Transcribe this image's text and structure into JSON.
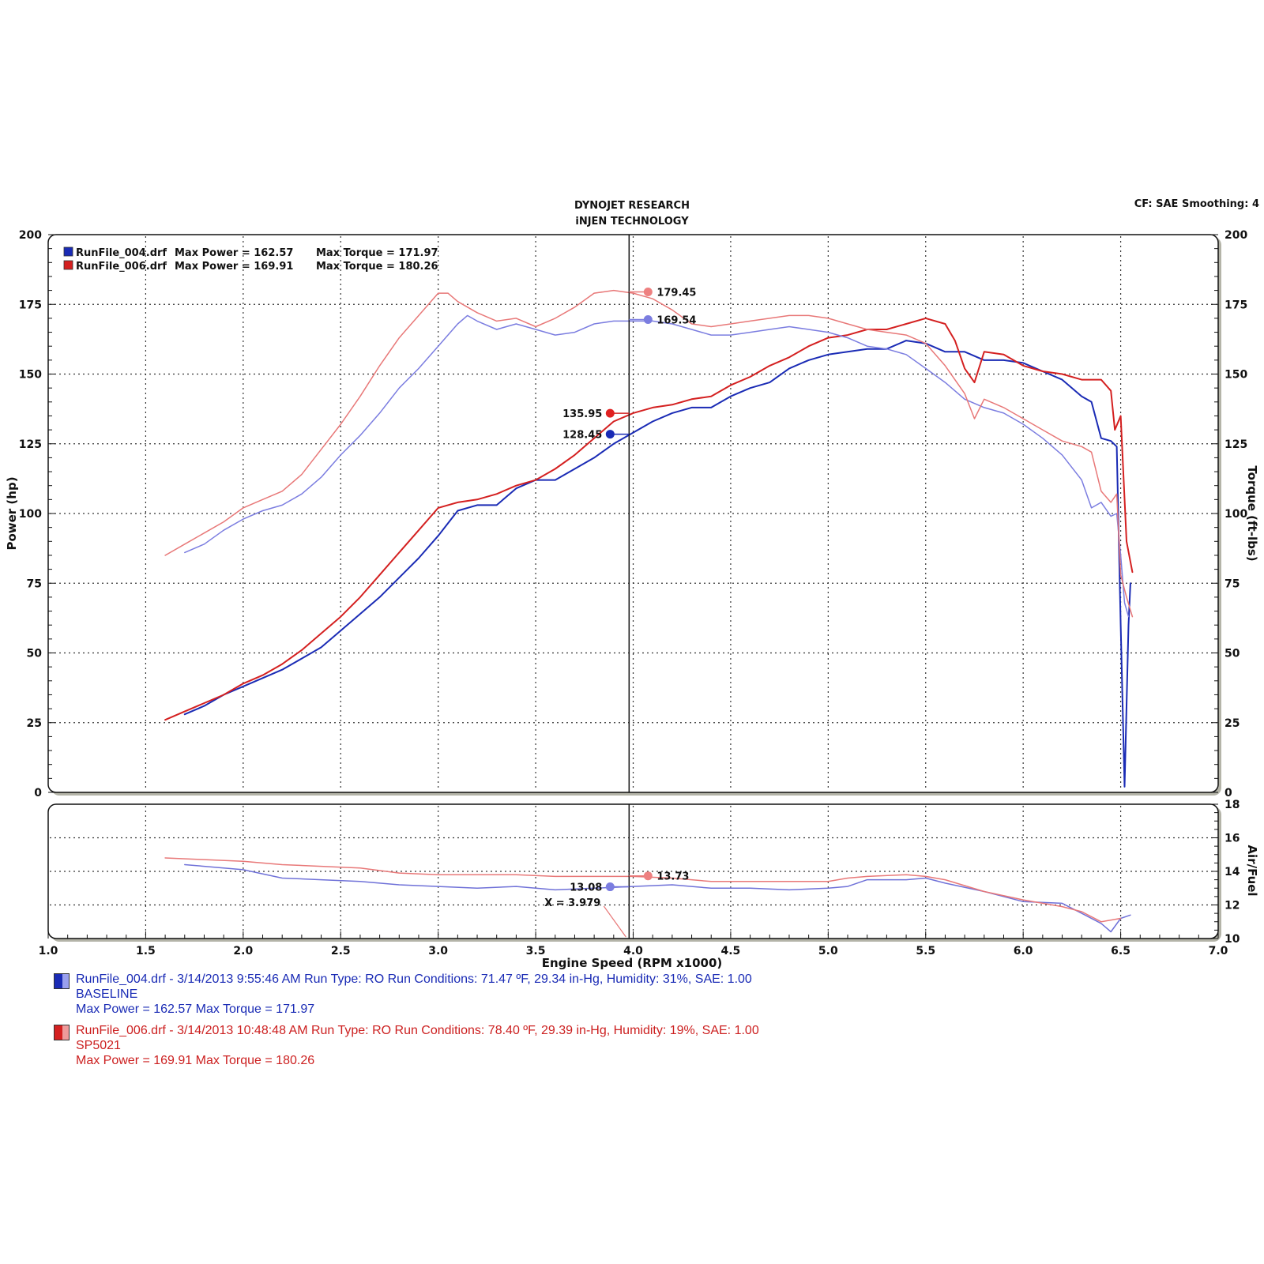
{
  "header": {
    "title_line1": "DYNOJET RESEARCH",
    "title_line2": "iNJEN TECHNOLOGY",
    "settings": "CF: SAE  Smoothing: 4"
  },
  "plot_legend": [
    {
      "file": "RunFile_004.drf",
      "power_text": "Max Power = 162.57",
      "torque_text": "Max Torque = 171.97",
      "color": "#1a2bb5"
    },
    {
      "file": "RunFile_006.drf",
      "power_text": "Max Power = 169.91",
      "torque_text": "Max Torque = 180.26",
      "color": "#d42020"
    }
  ],
  "cursor": {
    "label": "X = 3.979",
    "x": 3.979,
    "readouts": [
      {
        "value": "179.45",
        "y": 179.45,
        "series": "run006_torque",
        "side": "right"
      },
      {
        "value": "169.54",
        "y": 169.54,
        "series": "run004_torque",
        "side": "right"
      },
      {
        "value": "135.95",
        "y": 135.95,
        "series": "run006_power",
        "side": "left"
      },
      {
        "value": "128.45",
        "y": 128.45,
        "series": "run004_power",
        "side": "left"
      },
      {
        "value": "13.73",
        "y": 13.73,
        "series": "run006_afr",
        "side": "right"
      },
      {
        "value": "13.08",
        "y": 13.08,
        "series": "run004_afr",
        "side": "left"
      }
    ]
  },
  "chart_data": {
    "type": "line",
    "xlabel": "Engine Speed (RPM x1000)",
    "ylabel_left": "Power (hp)",
    "ylabel_right": "Torque (ft-lbs)",
    "ylabel_afr": "Air/Fuel",
    "xlim": [
      1.0,
      7.0
    ],
    "x_ticks": [
      "1.0",
      "1.5",
      "2.0",
      "2.5",
      "3.0",
      "3.5",
      "4.0",
      "4.5",
      "5.0",
      "5.5",
      "6.0",
      "6.5",
      "7.0"
    ],
    "ylim_main": [
      0,
      200
    ],
    "y_ticks_main": [
      "0",
      "25",
      "50",
      "75",
      "100",
      "125",
      "150",
      "175",
      "200"
    ],
    "y_ticks_torque": [
      "25",
      "50",
      "75",
      "100",
      "125",
      "150",
      "175",
      "200"
    ],
    "ylim_afr": [
      10,
      18
    ],
    "y_ticks_afr": [
      "10",
      "12",
      "14",
      "16",
      "18"
    ],
    "grid": true,
    "series": [
      {
        "key": "run004_power",
        "color": "#1a2bb5",
        "width": 2,
        "x": [
          1.7,
          1.8,
          1.9,
          2.0,
          2.1,
          2.2,
          2.3,
          2.4,
          2.5,
          2.6,
          2.7,
          2.8,
          2.9,
          3.0,
          3.1,
          3.2,
          3.3,
          3.4,
          3.5,
          3.6,
          3.7,
          3.8,
          3.9,
          4.0,
          4.1,
          4.2,
          4.3,
          4.4,
          4.5,
          4.6,
          4.7,
          4.8,
          4.9,
          5.0,
          5.1,
          5.2,
          5.3,
          5.4,
          5.5,
          5.6,
          5.7,
          5.8,
          5.9,
          6.0,
          6.1,
          6.2,
          6.3,
          6.35,
          6.4,
          6.45,
          6.48,
          6.5,
          6.52,
          6.54,
          6.55
        ],
        "y": [
          28,
          31,
          35,
          38,
          41,
          44,
          48,
          52,
          58,
          64,
          70,
          77,
          84,
          92,
          101,
          103,
          103,
          109,
          112,
          112,
          116,
          120,
          125,
          129,
          133,
          136,
          138,
          138,
          142,
          145,
          147,
          152,
          155,
          157,
          158,
          159,
          159,
          162,
          161,
          158,
          158,
          155,
          155,
          154,
          151,
          148,
          142,
          140,
          127,
          126,
          124,
          60,
          2,
          60,
          75
        ]
      },
      {
        "key": "run006_power",
        "color": "#d42020",
        "width": 2,
        "x": [
          1.6,
          1.7,
          1.8,
          1.9,
          2.0,
          2.1,
          2.2,
          2.3,
          2.4,
          2.5,
          2.6,
          2.7,
          2.8,
          2.9,
          3.0,
          3.1,
          3.2,
          3.3,
          3.4,
          3.5,
          3.6,
          3.7,
          3.8,
          3.9,
          4.0,
          4.1,
          4.2,
          4.3,
          4.4,
          4.5,
          4.6,
          4.7,
          4.8,
          4.9,
          5.0,
          5.1,
          5.2,
          5.3,
          5.4,
          5.5,
          5.6,
          5.65,
          5.7,
          5.75,
          5.8,
          5.9,
          6.0,
          6.1,
          6.2,
          6.3,
          6.4,
          6.45,
          6.47,
          6.5,
          6.53,
          6.56
        ],
        "y": [
          26,
          29,
          32,
          35,
          39,
          42,
          46,
          51,
          57,
          63,
          70,
          78,
          86,
          94,
          102,
          104,
          105,
          107,
          110,
          112,
          116,
          121,
          127,
          133,
          136,
          138,
          139,
          141,
          142,
          146,
          149,
          153,
          156,
          160,
          163,
          164,
          166,
          166,
          168,
          170,
          168,
          162,
          152,
          147,
          158,
          157,
          153,
          151,
          150,
          148,
          148,
          144,
          130,
          135,
          90,
          79
        ]
      },
      {
        "key": "run004_torque",
        "color": "#7b7de0",
        "width": 1.5,
        "x": [
          1.7,
          1.8,
          1.9,
          2.0,
          2.1,
          2.2,
          2.3,
          2.4,
          2.5,
          2.6,
          2.7,
          2.8,
          2.9,
          3.0,
          3.1,
          3.15,
          3.2,
          3.3,
          3.4,
          3.5,
          3.6,
          3.7,
          3.8,
          3.9,
          4.0,
          4.1,
          4.2,
          4.3,
          4.4,
          4.5,
          4.6,
          4.7,
          4.8,
          4.9,
          5.0,
          5.1,
          5.2,
          5.3,
          5.4,
          5.5,
          5.6,
          5.7,
          5.8,
          5.9,
          6.0,
          6.1,
          6.2,
          6.3,
          6.35,
          6.4,
          6.45,
          6.48,
          6.5,
          6.52,
          6.54
        ],
        "y": [
          86,
          89,
          94,
          98,
          101,
          103,
          107,
          113,
          121,
          128,
          136,
          145,
          152,
          160,
          168,
          171,
          169,
          166,
          168,
          166,
          164,
          165,
          168,
          169,
          169,
          169,
          168,
          166,
          164,
          164,
          165,
          166,
          167,
          166,
          165,
          163,
          160,
          159,
          157,
          152,
          147,
          141,
          138,
          136,
          132,
          127,
          121,
          112,
          102,
          104,
          99,
          100,
          85,
          68,
          63
        ]
      },
      {
        "key": "run006_torque",
        "color": "#e87878",
        "width": 1.5,
        "x": [
          1.6,
          1.7,
          1.8,
          1.9,
          2.0,
          2.1,
          2.2,
          2.3,
          2.4,
          2.5,
          2.6,
          2.7,
          2.8,
          2.9,
          3.0,
          3.05,
          3.1,
          3.2,
          3.3,
          3.4,
          3.5,
          3.6,
          3.7,
          3.8,
          3.9,
          4.0,
          4.1,
          4.2,
          4.3,
          4.4,
          4.5,
          4.6,
          4.7,
          4.8,
          4.9,
          5.0,
          5.1,
          5.2,
          5.3,
          5.4,
          5.5,
          5.6,
          5.7,
          5.75,
          5.8,
          5.9,
          6.0,
          6.1,
          6.2,
          6.3,
          6.35,
          6.4,
          6.45,
          6.48,
          6.5,
          6.53,
          6.56
        ],
        "y": [
          85,
          89,
          93,
          97,
          102,
          105,
          108,
          114,
          123,
          132,
          142,
          153,
          163,
          171,
          179,
          179,
          176,
          172,
          169,
          170,
          167,
          170,
          174,
          179,
          180,
          179,
          177,
          173,
          168,
          167,
          168,
          169,
          170,
          171,
          171,
          170,
          168,
          166,
          165,
          164,
          161,
          153,
          143,
          134,
          141,
          138,
          134,
          130,
          126,
          124,
          122,
          108,
          104,
          107,
          78,
          70,
          63
        ]
      },
      {
        "key": "run004_afr",
        "panel": "afr",
        "color": "#6f71d8",
        "width": 1.5,
        "x": [
          1.7,
          1.8,
          2.0,
          2.2,
          2.4,
          2.6,
          2.8,
          3.0,
          3.2,
          3.4,
          3.6,
          3.8,
          4.0,
          4.2,
          4.4,
          4.6,
          4.8,
          5.0,
          5.1,
          5.2,
          5.4,
          5.5,
          5.6,
          5.8,
          6.0,
          6.2,
          6.3,
          6.4,
          6.45,
          6.5,
          6.55
        ],
        "y": [
          14.4,
          14.3,
          14.1,
          13.6,
          13.5,
          13.4,
          13.2,
          13.1,
          13.0,
          13.1,
          12.9,
          13.0,
          13.1,
          13.2,
          13.0,
          13.0,
          12.9,
          13.0,
          13.1,
          13.5,
          13.5,
          13.6,
          13.3,
          12.8,
          12.2,
          12.1,
          11.5,
          10.9,
          10.4,
          11.2,
          11.4
        ]
      },
      {
        "key": "run006_afr",
        "panel": "afr",
        "color": "#e87878",
        "width": 1.5,
        "x": [
          1.6,
          1.8,
          2.0,
          2.1,
          2.2,
          2.4,
          2.6,
          2.8,
          3.0,
          3.2,
          3.4,
          3.6,
          3.8,
          4.0,
          4.2,
          4.4,
          4.6,
          4.8,
          5.0,
          5.1,
          5.2,
          5.4,
          5.5,
          5.6,
          5.8,
          6.0,
          6.1,
          6.2,
          6.3,
          6.4,
          6.5
        ],
        "y": [
          14.8,
          14.7,
          14.6,
          14.5,
          14.4,
          14.3,
          14.2,
          13.9,
          13.8,
          13.8,
          13.8,
          13.7,
          13.7,
          13.7,
          13.6,
          13.4,
          13.4,
          13.4,
          13.4,
          13.6,
          13.7,
          13.8,
          13.7,
          13.5,
          12.8,
          12.3,
          12.1,
          11.9,
          11.6,
          11.0,
          11.2
        ]
      }
    ]
  },
  "footer_legend": [
    {
      "color": "#1a2bb5",
      "line1": "RunFile_004.drf - 3/14/2013 9:55:46 AM  Run Type: RO  Run Conditions: 71.47 ºF, 29.34 in-Hg,  Humidity:  31%, SAE: 1.00",
      "line2": "BASELINE",
      "line3": "Max Power = 162.57  Max Torque = 171.97"
    },
    {
      "color": "#d42020",
      "line1": "RunFile_006.drf - 3/14/2013 10:48:48 AM  Run Type: RO  Run Conditions: 78.40 ºF, 29.39 in-Hg,  Humidity:  19%, SAE: 1.00",
      "line2": "SP5021",
      "line3": "Max Power = 169.91  Max Torque = 180.26"
    }
  ]
}
